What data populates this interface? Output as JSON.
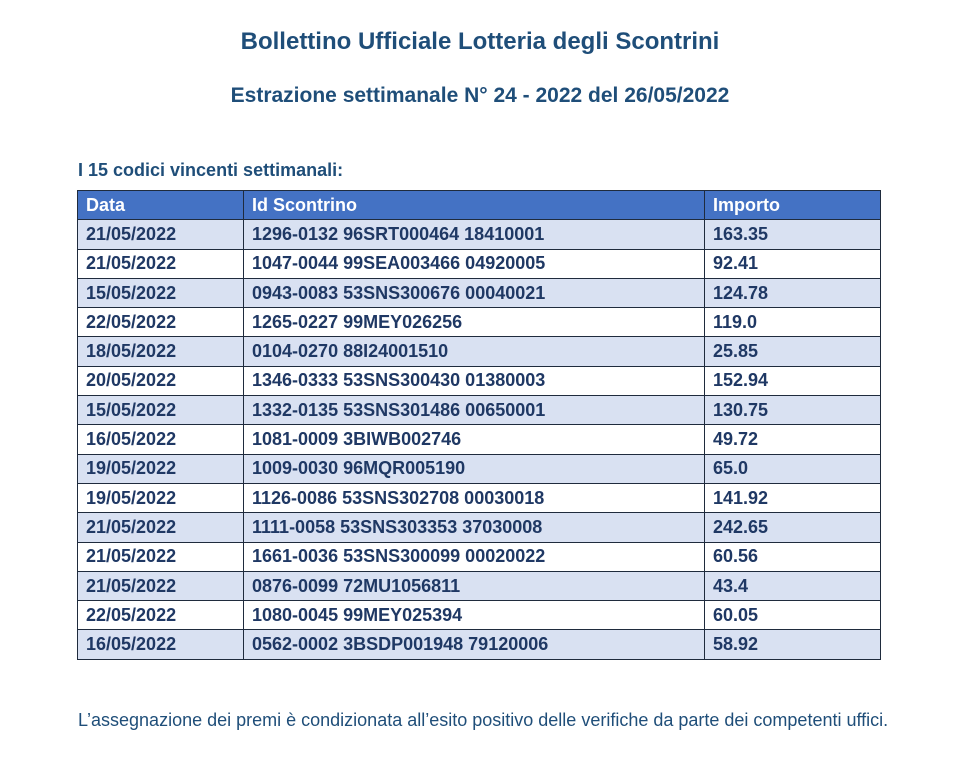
{
  "title": "Bollettino Ufficiale Lotteria degli Scontrini",
  "subtitle": "Estrazione settimanale N° 24 - 2022 del 26/05/2022",
  "section_label": "I 15 codici vincenti settimanali:",
  "table": {
    "headers": [
      "Data",
      "Id Scontrino",
      "Importo"
    ],
    "rows": [
      [
        "21/05/2022",
        "1296-0132 96SRT000464 18410001",
        "163.35"
      ],
      [
        "21/05/2022",
        "1047-0044 99SEA003466 04920005",
        "92.41"
      ],
      [
        "15/05/2022",
        "0943-0083 53SNS300676 00040021",
        "124.78"
      ],
      [
        "22/05/2022",
        "1265-0227 99MEY026256",
        "119.0"
      ],
      [
        "18/05/2022",
        "0104-0270 88I24001510",
        "25.85"
      ],
      [
        "20/05/2022",
        "1346-0333 53SNS300430 01380003",
        "152.94"
      ],
      [
        "15/05/2022",
        "1332-0135 53SNS301486 00650001",
        "130.75"
      ],
      [
        "16/05/2022",
        "1081-0009 3BIWB002746",
        "49.72"
      ],
      [
        "19/05/2022",
        "1009-0030 96MQR005190",
        "65.0"
      ],
      [
        "19/05/2022",
        "1126-0086 53SNS302708 00030018",
        "141.92"
      ],
      [
        "21/05/2022",
        "1111-0058 53SNS303353 37030008",
        "242.65"
      ],
      [
        "21/05/2022",
        "1661-0036 53SNS300099 00020022",
        "60.56"
      ],
      [
        "21/05/2022",
        "0876-0099 72MU1056811",
        "43.4"
      ],
      [
        "22/05/2022",
        "1080-0045 99MEY025394",
        "60.05"
      ],
      [
        "16/05/2022",
        "0562-0002 3BSDP001948 79120006",
        "58.92"
      ]
    ]
  },
  "footer": "L’assegnazione dei premi è condizionata all’esito positivo delle verifiche da parte dei competenti uffici.",
  "colors": {
    "header_bg": "#4472c4",
    "stripe": "#d9e1f2",
    "text": "#1f3864"
  }
}
